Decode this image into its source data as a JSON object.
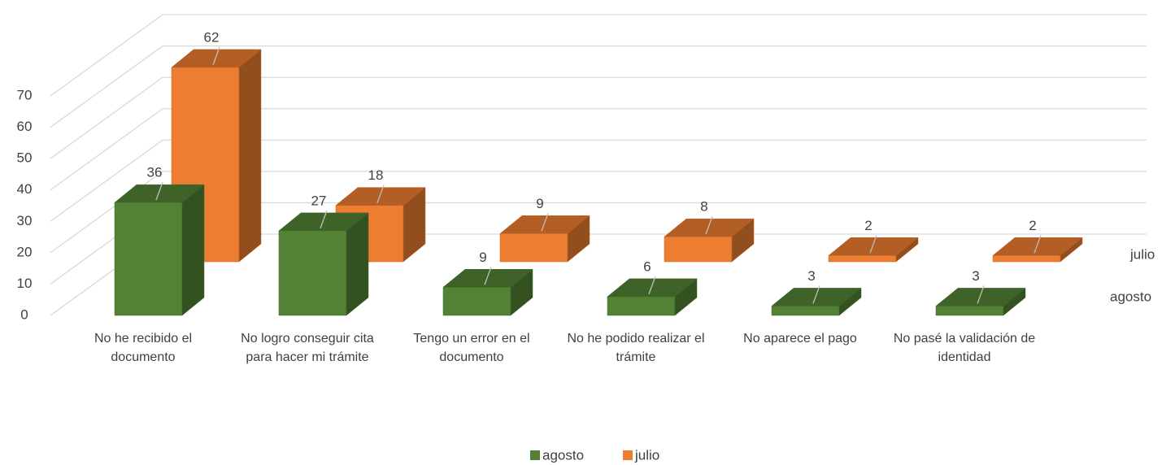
{
  "chart_data": {
    "type": "bar3d",
    "categories": [
      "No he recibido el documento",
      "No logro conseguir cita para hacer mi trámite",
      "Tengo un error en el documento",
      "No he podido realizar el trámite",
      "No aparece el pago",
      "No pasé la validación de identidad"
    ],
    "series": [
      {
        "name": "agosto",
        "color": "#548235",
        "values": [
          36,
          27,
          9,
          6,
          3,
          3
        ]
      },
      {
        "name": "julio",
        "color": "#ed7d31",
        "values": [
          62,
          18,
          9,
          8,
          2,
          2
        ]
      }
    ],
    "ylim": [
      0,
      70
    ],
    "yticks": [
      0,
      10,
      20,
      30,
      40,
      50,
      60,
      70
    ],
    "grid": true,
    "legend": "bottom"
  }
}
